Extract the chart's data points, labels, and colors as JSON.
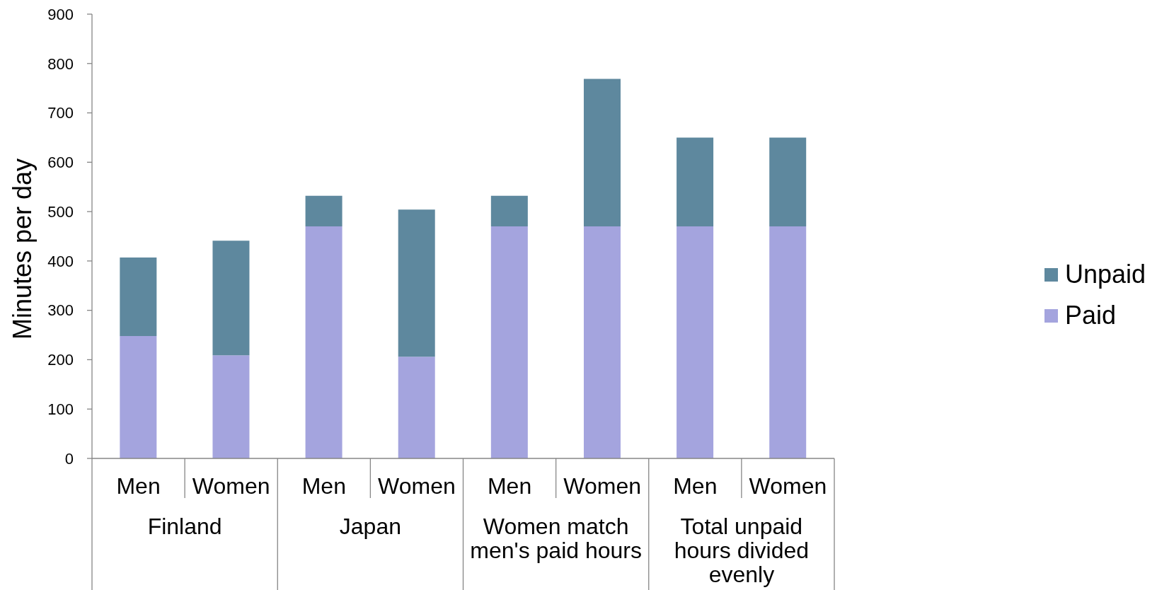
{
  "chart_data": {
    "type": "bar",
    "ylabel": "Minutes per day",
    "categories": [
      "Men",
      "Women",
      "Men",
      "Women",
      "Men",
      "Women",
      "Men",
      "Women"
    ],
    "series": [
      {
        "name": "Paid",
        "color": "#a4a4de",
        "values": [
          248,
          209,
          470,
          206,
          470,
          470,
          470,
          470
        ]
      },
      {
        "name": "Unpaid",
        "color": "#5e889e",
        "values": [
          159,
          232,
          62,
          298,
          62,
          299,
          180,
          180
        ]
      }
    ],
    "stacked": true,
    "ylim": [
      0,
      900
    ],
    "yticks": [
      0,
      100,
      200,
      300,
      400,
      500,
      600,
      700,
      800,
      900
    ],
    "legend": "right",
    "annotations": [
      "Finland",
      "Japan",
      "Women match men's paid hours",
      "Total unpaid hours divided evenly"
    ]
  }
}
